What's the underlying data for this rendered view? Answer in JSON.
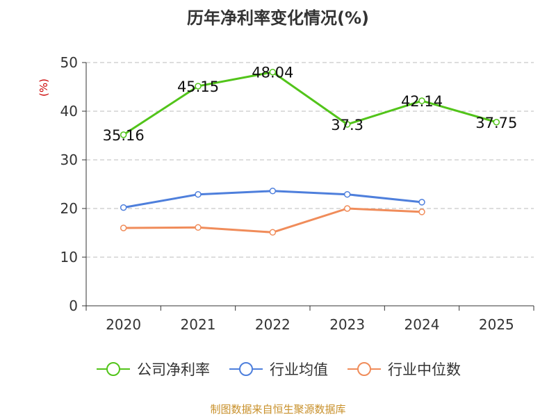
{
  "chart_data": {
    "type": "line",
    "title": "历年净利率变化情况(%)",
    "ylabel": "(%)",
    "xlabel": "",
    "categories": [
      "2020",
      "2021",
      "2022",
      "2023",
      "2024",
      "2025"
    ],
    "ylim": [
      0,
      50
    ],
    "yticks": [
      0,
      10,
      20,
      30,
      40,
      50
    ],
    "grid": true,
    "legend_position": "bottom",
    "series": [
      {
        "name": "公司净利率",
        "color": "#52c41a",
        "labels": true,
        "values": [
          35.16,
          45.15,
          48.04,
          37.3,
          42.14,
          37.75
        ]
      },
      {
        "name": "行业均值",
        "color": "#4e7fdc",
        "labels": false,
        "values": [
          20.2,
          22.9,
          23.6,
          22.9,
          21.3,
          null
        ]
      },
      {
        "name": "行业中位数",
        "color": "#f08c5a",
        "labels": false,
        "values": [
          16.0,
          16.1,
          15.1,
          20.0,
          19.3,
          null
        ]
      }
    ]
  },
  "source_note": "制图数据来自恒生聚源数据库",
  "colors": {
    "title": "#333333",
    "axis": "#333333",
    "grid": "#bbbbbb",
    "ylabel": "#cc0000",
    "source_note": "#c8902a"
  }
}
